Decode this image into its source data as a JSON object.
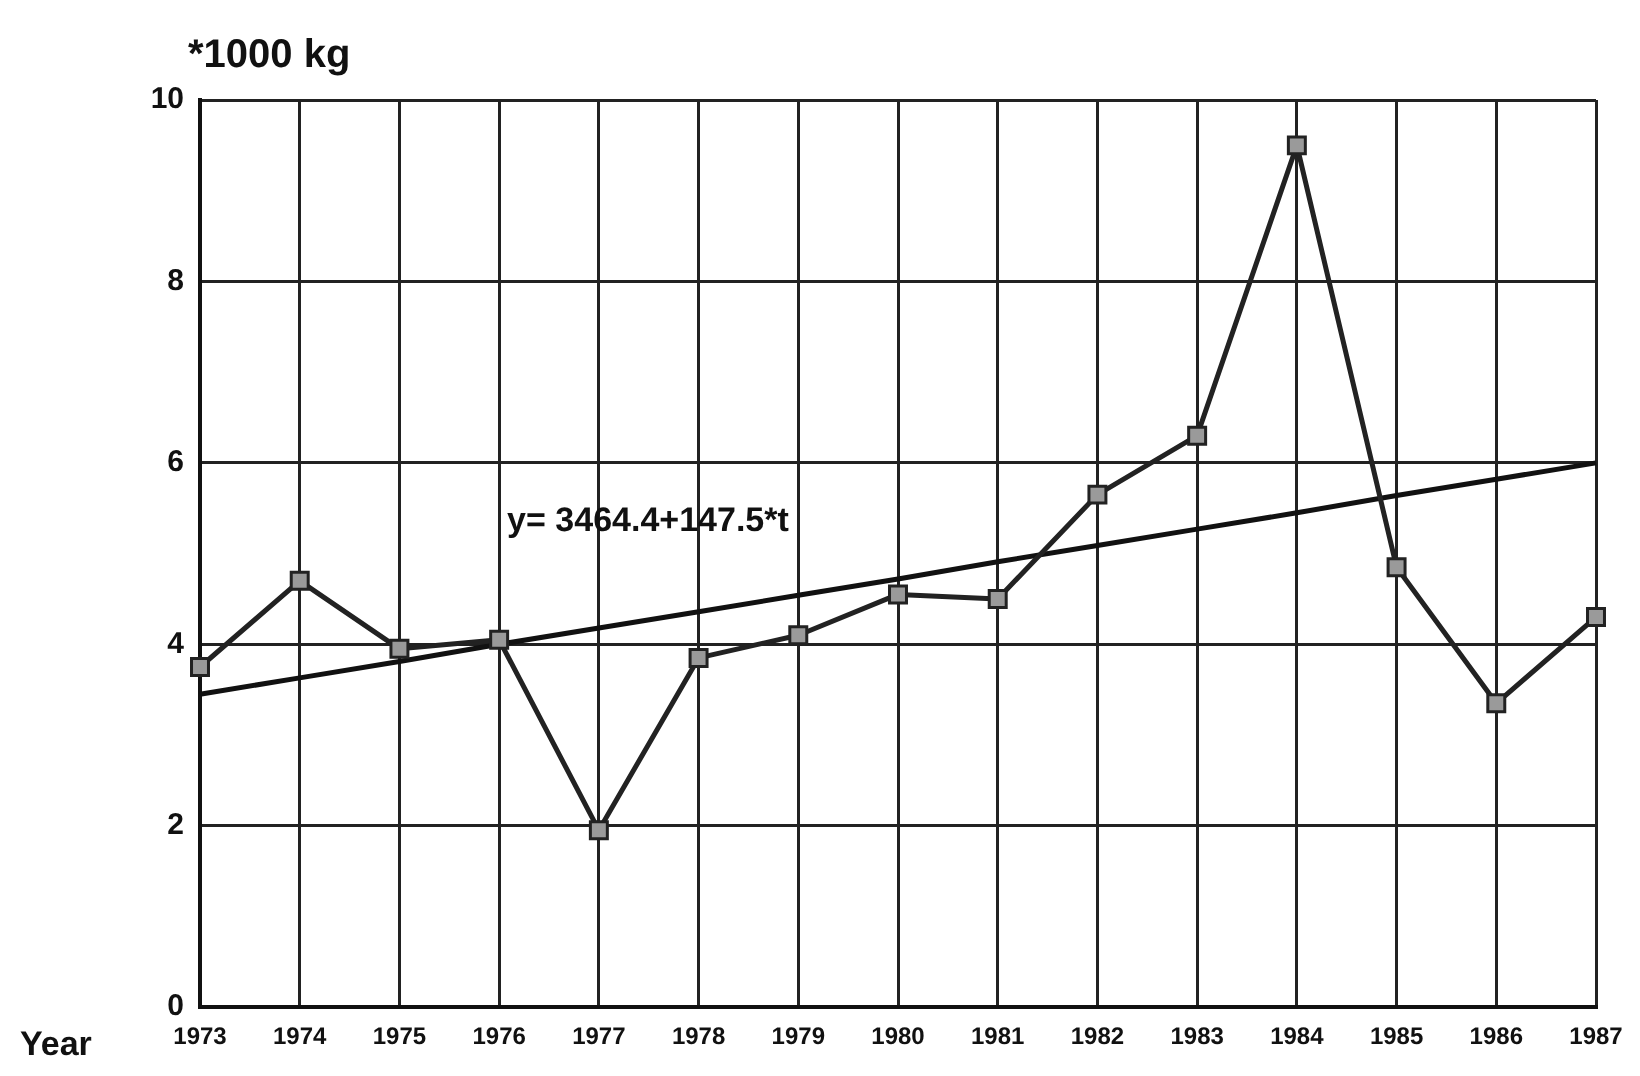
{
  "chart_data": {
    "type": "line",
    "xlabel": "Year",
    "ylabel": "*1000 kg",
    "categories": [
      "1973",
      "1974",
      "1975",
      "1976",
      "1977",
      "1978",
      "1979",
      "1980",
      "1981",
      "1982",
      "1983",
      "1984",
      "1985",
      "1986",
      "1987"
    ],
    "series": [
      {
        "color": "#222222",
        "values": [
          3.75,
          4.7,
          3.95,
          4.05,
          1.95,
          3.85,
          4.1,
          4.55,
          4.5,
          5.65,
          6.3,
          9.5,
          4.85,
          3.35,
          4.3
        ],
        "marker": "square"
      },
      {
        "color": "#111111",
        "values": [
          3.45,
          3.63,
          3.81,
          4.0,
          4.18,
          4.36,
          4.54,
          4.72,
          4.91,
          5.09,
          5.27,
          5.45,
          5.64,
          5.82,
          6.0
        ],
        "marker": "none"
      }
    ],
    "ylim": [
      0,
      10
    ],
    "yticks": [
      0,
      2,
      4,
      6,
      8,
      10
    ],
    "grid": true,
    "legend": false,
    "annotations": [
      "y= 3464.4+147.5*t"
    ]
  }
}
